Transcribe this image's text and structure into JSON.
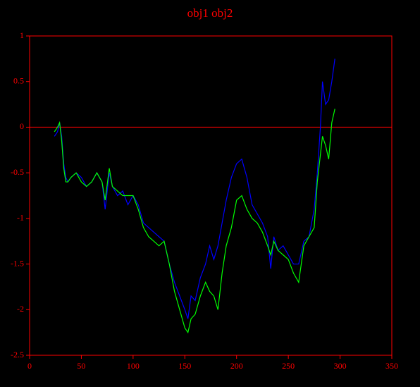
{
  "chart_data": {
    "type": "line",
    "title": "obj1 obj2",
    "x": [
      24,
      27,
      29,
      31,
      33,
      35,
      37,
      40,
      45,
      50,
      55,
      60,
      65,
      70,
      73,
      77,
      80,
      85,
      90,
      95,
      100,
      105,
      110,
      115,
      120,
      125,
      130,
      135,
      140,
      145,
      150,
      153,
      156,
      160,
      165,
      170,
      174,
      178,
      182,
      186,
      190,
      195,
      200,
      205,
      210,
      215,
      220,
      225,
      230,
      233,
      236,
      240,
      245,
      250,
      255,
      260,
      265,
      270,
      275,
      278,
      281,
      283,
      286,
      289,
      292,
      295
    ],
    "series": [
      {
        "color": "#0000ff",
        "values": [
          -0.1,
          -0.05,
          0.05,
          -0.1,
          -0.4,
          -0.55,
          -0.6,
          -0.55,
          -0.5,
          -0.55,
          -0.65,
          -0.6,
          -0.5,
          -0.6,
          -0.9,
          -0.5,
          -0.65,
          -0.75,
          -0.7,
          -0.85,
          -0.75,
          -0.85,
          -1.05,
          -1.1,
          -1.15,
          -1.2,
          -1.25,
          -1.5,
          -1.7,
          -1.85,
          -2.0,
          -2.1,
          -1.85,
          -1.9,
          -1.65,
          -1.5,
          -1.3,
          -1.45,
          -1.3,
          -1.05,
          -0.8,
          -0.55,
          -0.4,
          -0.35,
          -0.55,
          -0.85,
          -0.95,
          -1.05,
          -1.2,
          -1.55,
          -1.2,
          -1.35,
          -1.3,
          -1.4,
          -1.5,
          -1.5,
          -1.25,
          -1.2,
          -0.9,
          -0.5,
          0.0,
          0.5,
          0.25,
          0.3,
          0.5,
          0.75
        ]
      },
      {
        "color": "#00ff00",
        "values": [
          -0.05,
          0,
          0.05,
          -0.15,
          -0.45,
          -0.6,
          -0.6,
          -0.55,
          -0.5,
          -0.6,
          -0.65,
          -0.6,
          -0.5,
          -0.6,
          -0.8,
          -0.45,
          -0.65,
          -0.7,
          -0.75,
          -0.75,
          -0.75,
          -0.9,
          -1.1,
          -1.2,
          -1.25,
          -1.3,
          -1.25,
          -1.5,
          -1.8,
          -2.0,
          -2.2,
          -2.25,
          -2.1,
          -2.05,
          -1.85,
          -1.7,
          -1.8,
          -1.85,
          -2.0,
          -1.6,
          -1.3,
          -1.1,
          -0.8,
          -0.75,
          -0.9,
          -1.0,
          -1.05,
          -1.15,
          -1.3,
          -1.4,
          -1.25,
          -1.35,
          -1.4,
          -1.45,
          -1.6,
          -1.7,
          -1.3,
          -1.2,
          -1.1,
          -0.6,
          -0.3,
          -0.1,
          -0.2,
          -0.35,
          0.05,
          0.2
        ]
      }
    ],
    "xlim": [
      0,
      350
    ],
    "xticks": [
      0,
      50,
      100,
      150,
      200,
      250,
      300,
      350
    ],
    "ylim": [
      -2.5,
      1
    ],
    "yticks": [
      -2.5,
      -2,
      -1.5,
      -1,
      -0.5,
      0,
      0.5,
      1
    ],
    "axis_color": "#ff0000",
    "zero_line": true
  }
}
